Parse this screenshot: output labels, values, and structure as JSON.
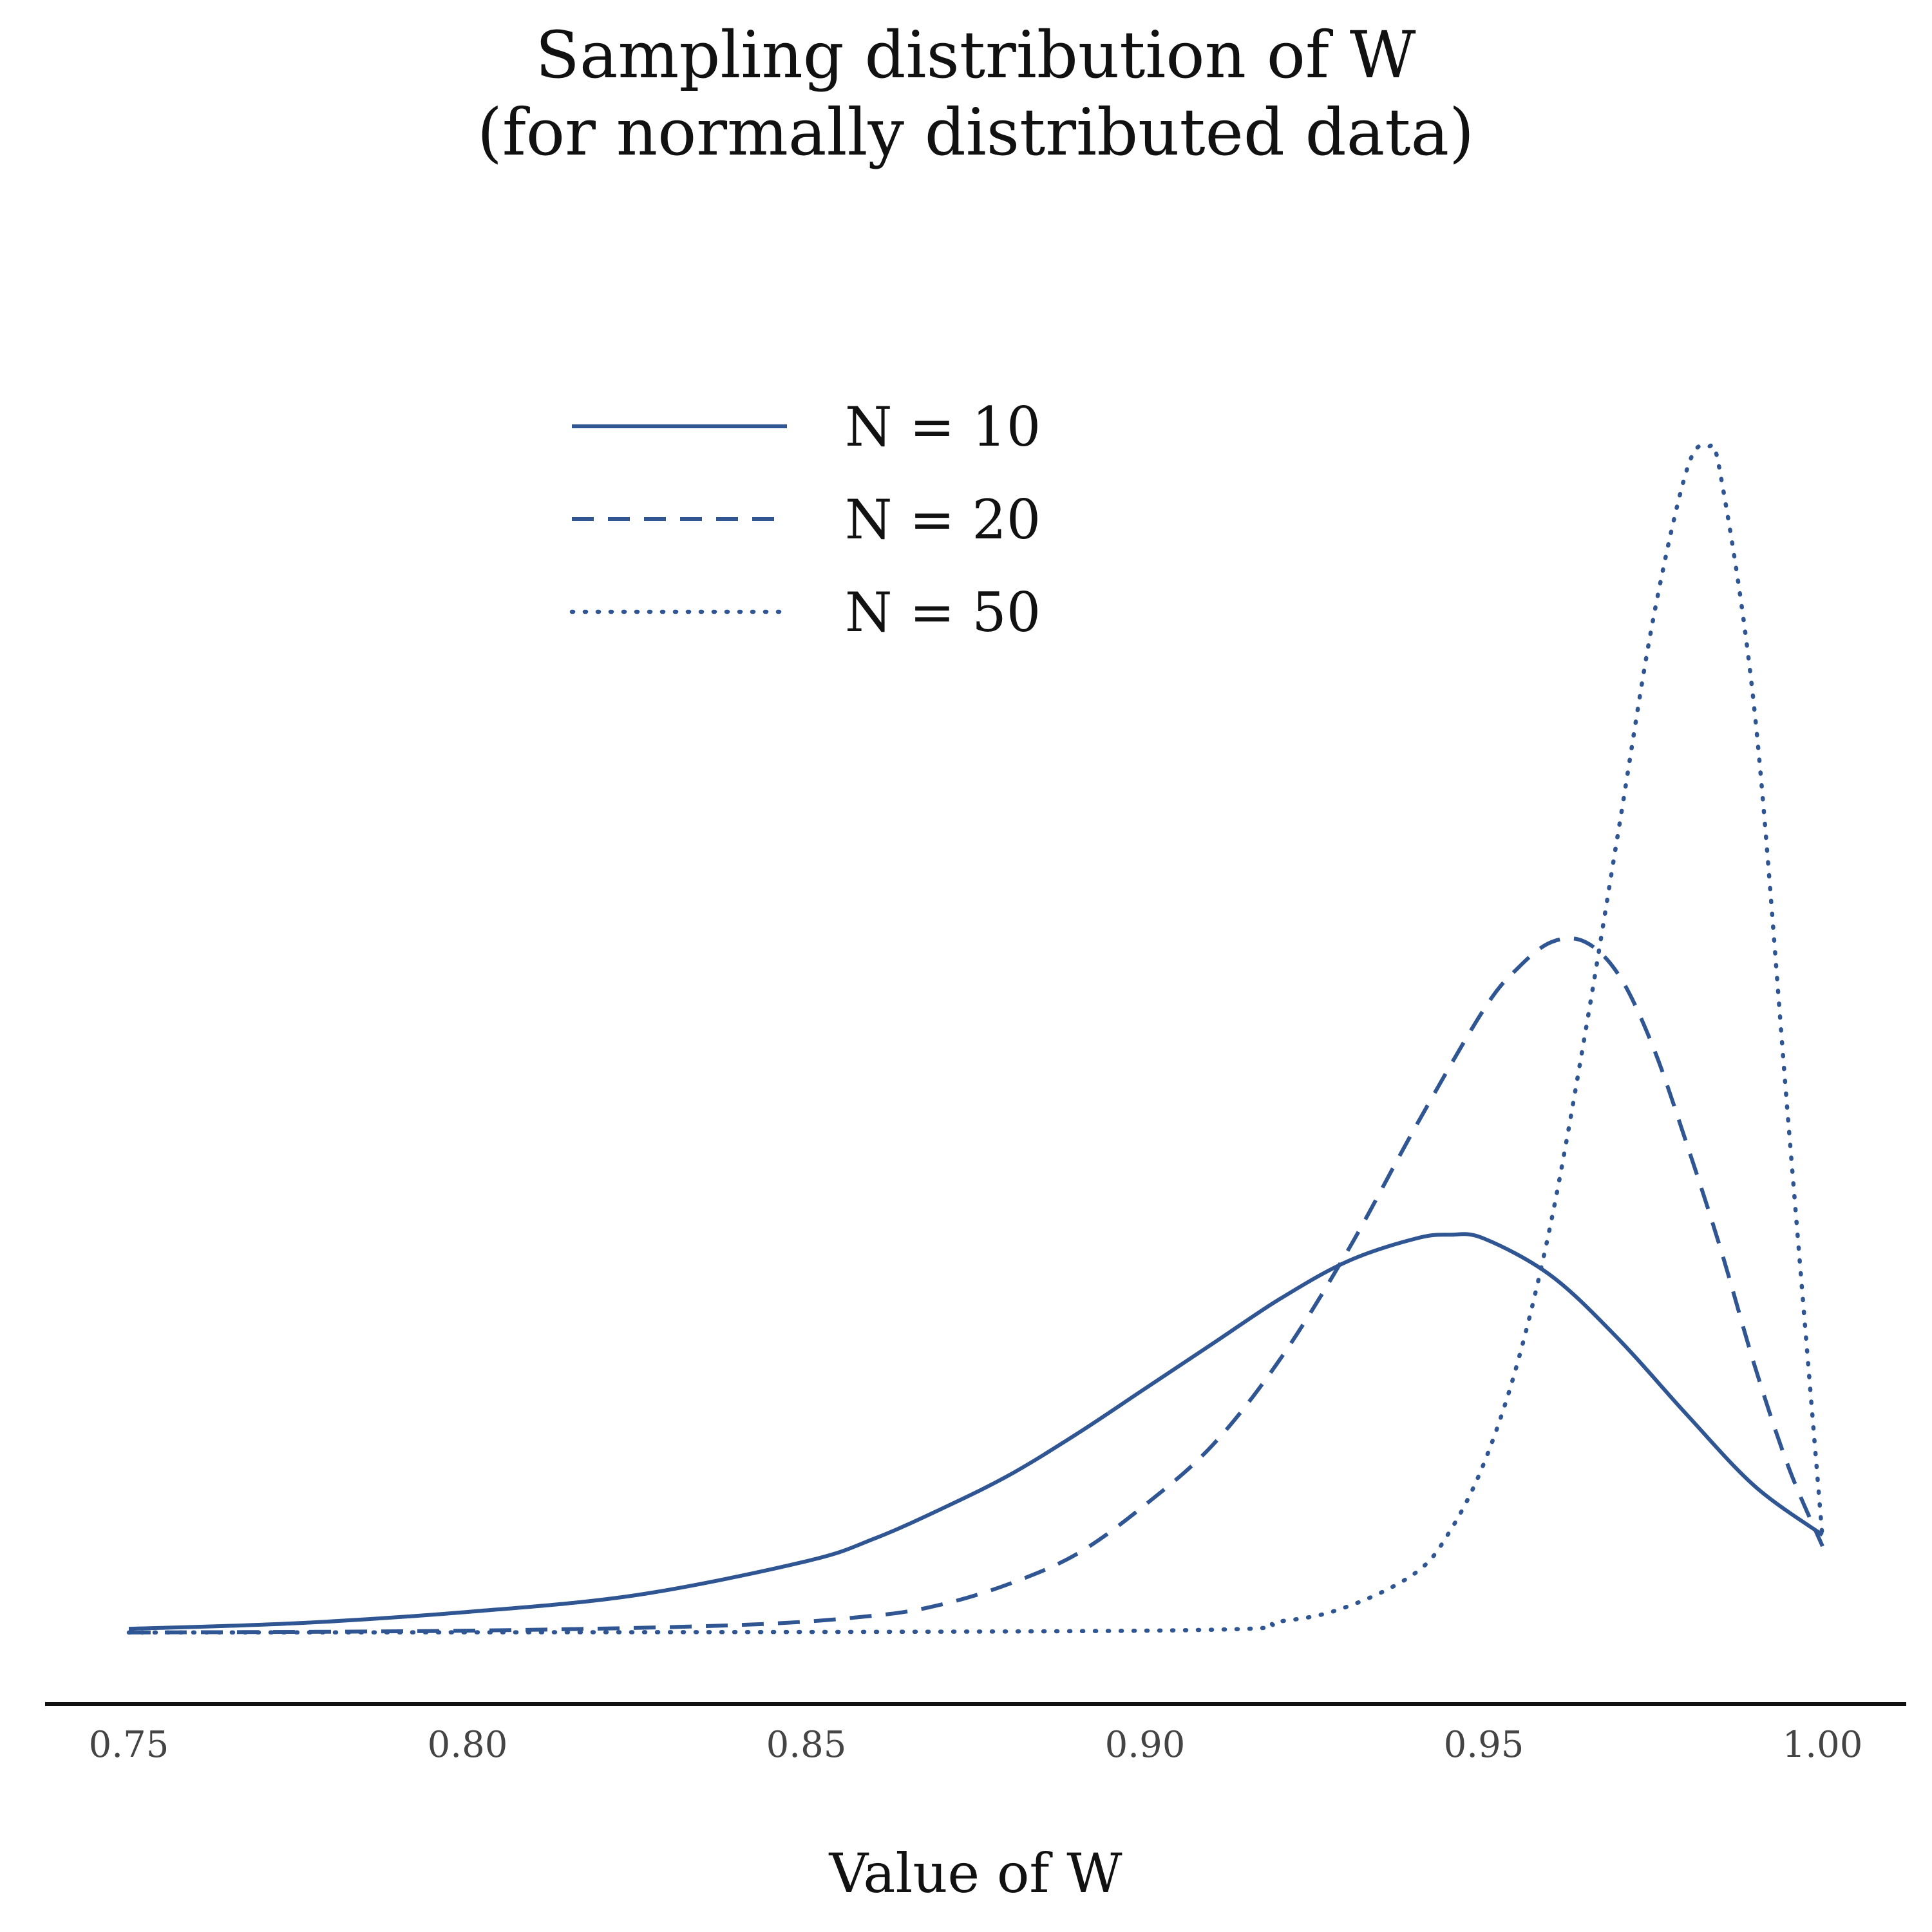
{
  "chart_data": {
    "type": "line",
    "title": "Sampling distribution of W",
    "subtitle": "(for normally distributed data)",
    "xlabel": "Value of W",
    "ylabel": "",
    "xlim": [
      0.75,
      1.0
    ],
    "ylim": [
      0,
      33
    ],
    "x_ticks": [
      "0.75",
      "0.80",
      "0.85",
      "0.90",
      "0.95",
      "1.00"
    ],
    "y_axis_visible": false,
    "grid": false,
    "legend_position": "top-center",
    "line_color": "#2f5592",
    "series": [
      {
        "name": "N = 10",
        "line_style": "solid",
        "points": [
          [
            0.75,
            0.1
          ],
          [
            0.775,
            0.25
          ],
          [
            0.8,
            0.55
          ],
          [
            0.825,
            1.0
          ],
          [
            0.85,
            1.9
          ],
          [
            0.86,
            2.5
          ],
          [
            0.87,
            3.3
          ],
          [
            0.88,
            4.2
          ],
          [
            0.89,
            5.3
          ],
          [
            0.9,
            6.5
          ],
          [
            0.91,
            7.7
          ],
          [
            0.92,
            8.9
          ],
          [
            0.93,
            9.9
          ],
          [
            0.94,
            10.5
          ],
          [
            0.945,
            10.6
          ],
          [
            0.95,
            10.5
          ],
          [
            0.96,
            9.5
          ],
          [
            0.97,
            7.8
          ],
          [
            0.98,
            5.8
          ],
          [
            0.99,
            3.9
          ],
          [
            1.0,
            2.6
          ]
        ]
      },
      {
        "name": "N = 20",
        "line_style": "dashed",
        "points": [
          [
            0.75,
            0.0
          ],
          [
            0.8,
            0.05
          ],
          [
            0.84,
            0.2
          ],
          [
            0.86,
            0.45
          ],
          [
            0.87,
            0.75
          ],
          [
            0.88,
            1.3
          ],
          [
            0.89,
            2.1
          ],
          [
            0.9,
            3.4
          ],
          [
            0.91,
            5.0
          ],
          [
            0.92,
            7.3
          ],
          [
            0.93,
            10.2
          ],
          [
            0.94,
            13.5
          ],
          [
            0.95,
            16.6
          ],
          [
            0.955,
            17.7
          ],
          [
            0.96,
            18.4
          ],
          [
            0.965,
            18.4
          ],
          [
            0.97,
            17.5
          ],
          [
            0.975,
            15.6
          ],
          [
            0.98,
            13.0
          ],
          [
            0.985,
            10.2
          ],
          [
            0.99,
            7.1
          ],
          [
            0.995,
            4.4
          ],
          [
            1.0,
            2.3
          ]
        ]
      },
      {
        "name": "N = 50",
        "line_style": "dotted",
        "points": [
          [
            0.75,
            0.0
          ],
          [
            0.9,
            0.05
          ],
          [
            0.92,
            0.3
          ],
          [
            0.93,
            0.7
          ],
          [
            0.94,
            1.6
          ],
          [
            0.945,
            2.7
          ],
          [
            0.95,
            4.5
          ],
          [
            0.955,
            7.2
          ],
          [
            0.96,
            11.0
          ],
          [
            0.965,
            16.0
          ],
          [
            0.97,
            21.5
          ],
          [
            0.975,
            27.0
          ],
          [
            0.98,
            31.0
          ],
          [
            0.983,
            31.6
          ],
          [
            0.985,
            30.8
          ],
          [
            0.99,
            24.5
          ],
          [
            0.995,
            13.5
          ],
          [
            1.0,
            2.5
          ]
        ]
      }
    ]
  }
}
